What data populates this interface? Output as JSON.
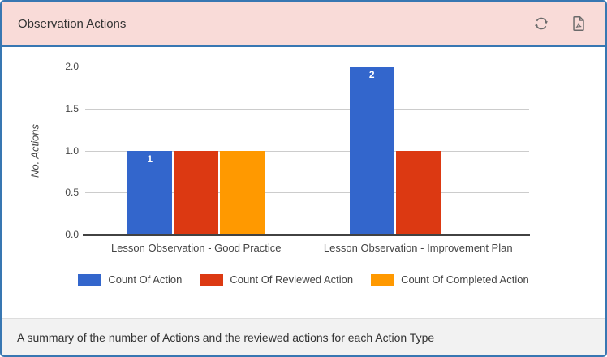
{
  "panel": {
    "title": "Observation Actions",
    "footer": "A summary of the number of Actions and the reviewed actions for each Action Type",
    "header_icons": [
      "refresh-icon",
      "pdf-file-icon"
    ]
  },
  "colors": {
    "panel_border": "#3877b2",
    "header_bg": "#f9dbd8",
    "footer_bg": "#f2f2f2",
    "icon": "#6a6a6a",
    "grid": "#cccccc",
    "axis_line": "#424242",
    "series_blue": "#3366cc",
    "series_red": "#dc3912",
    "series_orange": "#ff9900"
  },
  "chart_data": {
    "type": "bar",
    "title": "",
    "xlabel": "",
    "ylabel": "No. Actions",
    "ylim": [
      0,
      2
    ],
    "yticks": [
      0,
      0.5,
      1,
      1.5,
      2
    ],
    "ytick_labels": [
      "0.0",
      "0.5",
      "1.0",
      "1.5",
      "2.0"
    ],
    "grid": true,
    "legend_position": "bottom",
    "categories": [
      "Lesson Observation - Good Practice",
      "Lesson Observation - Improvement Plan"
    ],
    "series": [
      {
        "name": "Count Of Action",
        "color": "#3366cc",
        "values": [
          1,
          2
        ],
        "labels": [
          "1",
          "2"
        ]
      },
      {
        "name": "Count Of Reviewed Action",
        "color": "#dc3912",
        "values": [
          1,
          1
        ],
        "labels": [
          null,
          null
        ]
      },
      {
        "name": "Count Of Completed Action",
        "color": "#ff9900",
        "values": [
          1,
          0
        ],
        "labels": [
          null,
          null
        ]
      }
    ]
  }
}
